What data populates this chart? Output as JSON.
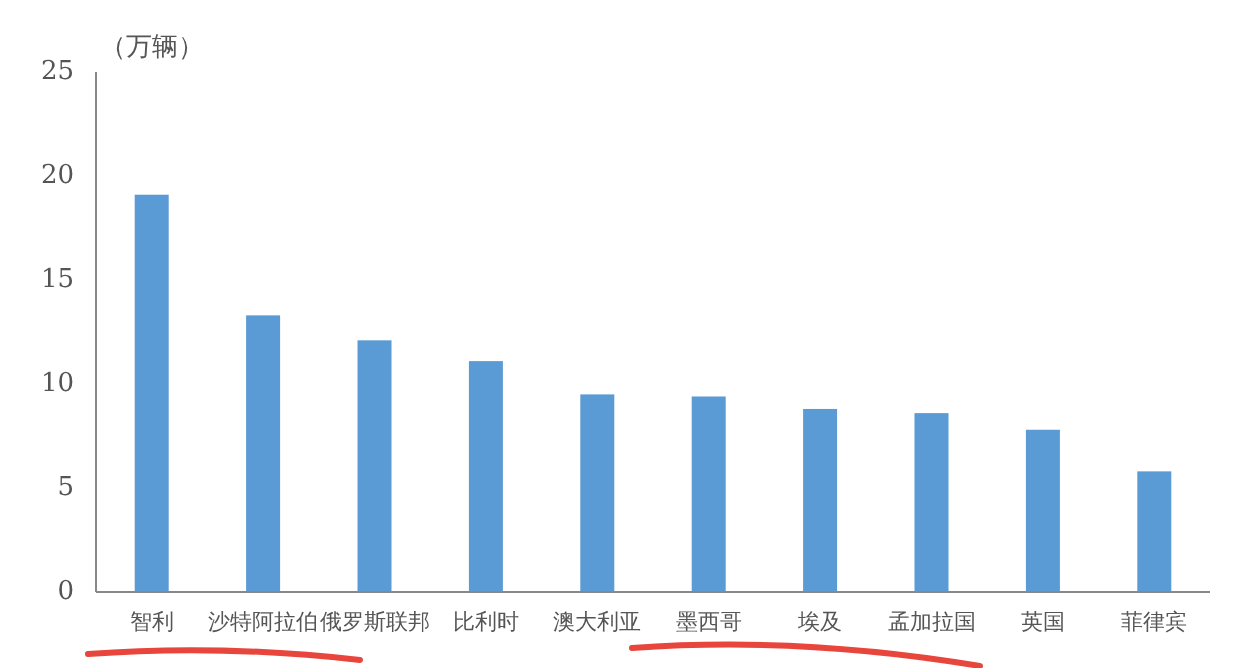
{
  "chart_data": {
    "type": "bar",
    "ylabel": "（万辆）",
    "categories": [
      "智利",
      "沙特阿拉伯",
      "俄罗斯联邦",
      "比利时",
      "澳大利亚",
      "墨西哥",
      "埃及",
      "孟加拉国",
      "英国",
      "菲律宾"
    ],
    "values": [
      19.1,
      13.3,
      12.1,
      11.1,
      9.5,
      9.4,
      8.8,
      8.6,
      7.8,
      5.8
    ],
    "color": "#5b9bd5",
    "ylim": [
      0,
      25
    ],
    "yticks": [
      0,
      5,
      10,
      15,
      20,
      25
    ],
    "grid": false
  }
}
